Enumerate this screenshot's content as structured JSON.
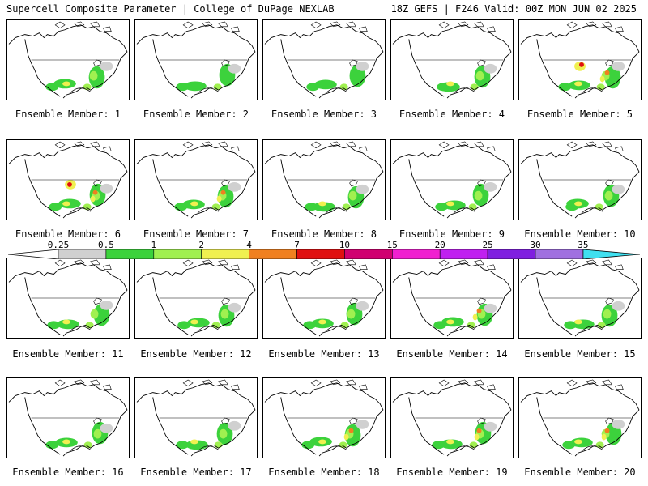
{
  "header": {
    "left": "Supercell Composite Parameter | College of DuPage NEXLAB",
    "right": "18Z GEFS | F246 Valid: 00Z MON JUN 02 2025"
  },
  "members": [
    "Ensemble Member: 1",
    "Ensemble Member: 2",
    "Ensemble Member: 3",
    "Ensemble Member: 4",
    "Ensemble Member: 5",
    "Ensemble Member: 6",
    "Ensemble Member: 7",
    "Ensemble Member: 8",
    "Ensemble Member: 9",
    "Ensemble Member: 10",
    "Ensemble Member: 11",
    "Ensemble Member: 12",
    "Ensemble Member: 13",
    "Ensemble Member: 14",
    "Ensemble Member: 15",
    "Ensemble Member: 16",
    "Ensemble Member: 17",
    "Ensemble Member: 18",
    "Ensemble Member: 19",
    "Ensemble Member: 20"
  ],
  "colorbar": {
    "ticks": [
      "0.25",
      "0.5",
      "1",
      "2",
      "4",
      "7",
      "10",
      "15",
      "20",
      "25",
      "30",
      "35"
    ],
    "colors": [
      "#d0d0d0",
      "#3cd23c",
      "#a0f050",
      "#f0f050",
      "#f08020",
      "#e01010",
      "#d00070",
      "#f020d0",
      "#c020f0",
      "#8020e0",
      "#a070e0",
      "#40e0f0"
    ]
  },
  "member_intensity": [
    2,
    1,
    1,
    2,
    4,
    4,
    3,
    2,
    2,
    2,
    2,
    2,
    2,
    3,
    2,
    2,
    2,
    3,
    3,
    3
  ]
}
